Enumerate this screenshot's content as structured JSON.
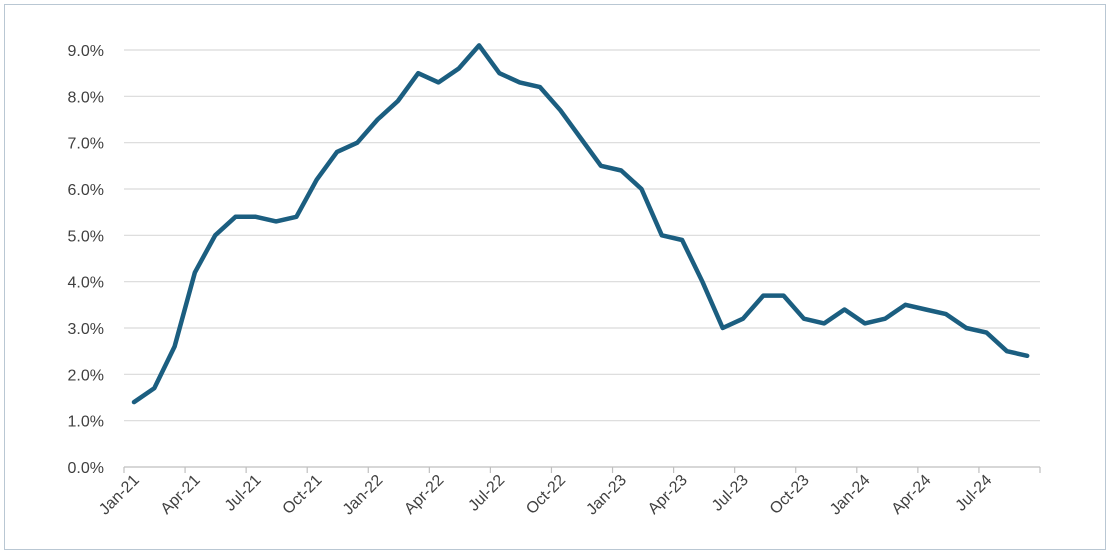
{
  "chart_data": {
    "type": "line",
    "title": "",
    "xlabel": "",
    "ylabel": "",
    "ylim": [
      0,
      9.5
    ],
    "y_ticks": [
      "0.0%",
      "1.0%",
      "2.0%",
      "3.0%",
      "4.0%",
      "5.0%",
      "6.0%",
      "7.0%",
      "8.0%",
      "9.0%"
    ],
    "y_tick_values": [
      0,
      1,
      2,
      3,
      4,
      5,
      6,
      7,
      8,
      9
    ],
    "x_tick_labels": [
      {
        "label": "Jan-21",
        "index": 0
      },
      {
        "label": "Apr-21",
        "index": 3
      },
      {
        "label": "Jul-21",
        "index": 6
      },
      {
        "label": "Oct-21",
        "index": 9
      },
      {
        "label": "Jan-22",
        "index": 12
      },
      {
        "label": "Apr-22",
        "index": 15
      },
      {
        "label": "Jul-22",
        "index": 18
      },
      {
        "label": "Oct-22",
        "index": 21
      },
      {
        "label": "Jan-23",
        "index": 24
      },
      {
        "label": "Apr-23",
        "index": 27
      },
      {
        "label": "Jul-23",
        "index": 30
      },
      {
        "label": "Oct-23",
        "index": 33
      },
      {
        "label": "Jan-24",
        "index": 36
      },
      {
        "label": "Apr-24",
        "index": 39
      },
      {
        "label": "Jul-24",
        "index": 42
      }
    ],
    "grid": true,
    "series_color": "#1b5e80",
    "series": [
      {
        "x": [
          "2021-01",
          "2021-02",
          "2021-03",
          "2021-04",
          "2021-05",
          "2021-06",
          "2021-07",
          "2021-08",
          "2021-09",
          "2021-10",
          "2021-11",
          "2021-12",
          "2022-01",
          "2022-02",
          "2022-03",
          "2022-04",
          "2022-05",
          "2022-06",
          "2022-07",
          "2022-08",
          "2022-09",
          "2022-10",
          "2022-11",
          "2022-12",
          "2023-01",
          "2023-02",
          "2023-03",
          "2023-04",
          "2023-05",
          "2023-06",
          "2023-07",
          "2023-08",
          "2023-09",
          "2023-10",
          "2023-11",
          "2023-12",
          "2024-01",
          "2024-02",
          "2024-03",
          "2024-04",
          "2024-05",
          "2024-06",
          "2024-07",
          "2024-08",
          "2024-09"
        ],
        "values": [
          1.4,
          1.7,
          2.6,
          4.2,
          5.0,
          5.4,
          5.4,
          5.3,
          5.4,
          6.2,
          6.8,
          7.0,
          7.5,
          7.9,
          8.5,
          8.3,
          8.6,
          9.1,
          8.5,
          8.3,
          8.2,
          7.7,
          7.1,
          6.5,
          6.4,
          6.0,
          5.0,
          4.9,
          4.0,
          3.0,
          3.2,
          3.7,
          3.7,
          3.2,
          3.1,
          3.4,
          3.1,
          3.2,
          3.5,
          3.4,
          3.3,
          3.0,
          2.9,
          2.5,
          2.4
        ]
      }
    ]
  }
}
